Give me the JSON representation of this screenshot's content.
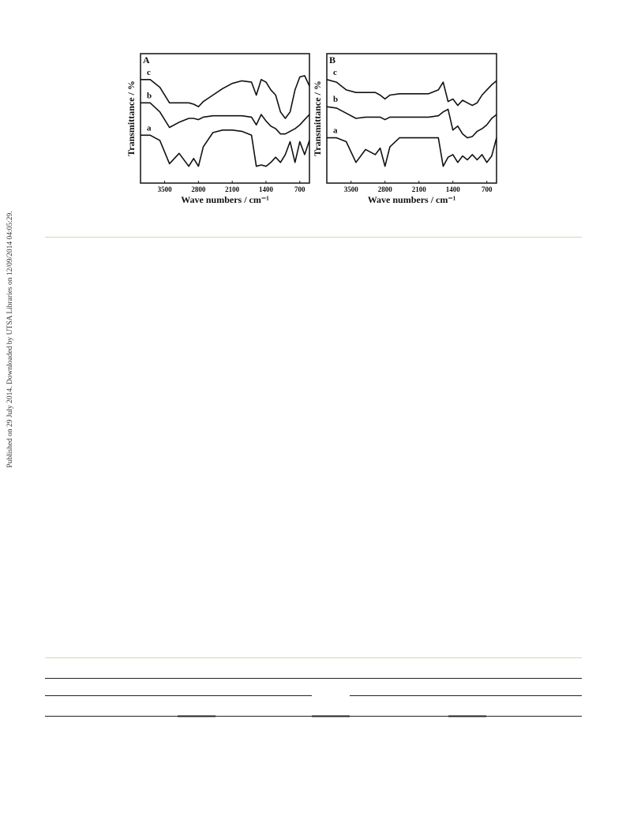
{
  "sidebar": "Published on 29 July 2014. Downloaded by UTSA Libraries on 12/09/2014 04:05:29.",
  "chart_data": [
    {
      "type": "line",
      "panel_label": "A",
      "xlabel": "Wave numbers / cm⁻¹",
      "ylabel": "Transmittance / %",
      "x": [
        4000,
        3800,
        3600,
        3400,
        3200,
        3000,
        2900,
        2800,
        2700,
        2500,
        2300,
        2100,
        1900,
        1700,
        1600,
        1500,
        1400,
        1300,
        1200,
        1100,
        1000,
        900,
        800,
        700,
        600,
        500
      ],
      "xlim": [
        4000,
        500
      ],
      "xticks": [
        3500,
        2800,
        2100,
        1400,
        700
      ],
      "ylim": [
        0,
        100
      ],
      "series": [
        {
          "name": "c",
          "color": "#111111",
          "values": [
            80,
            80,
            74,
            62,
            62,
            62,
            61,
            59,
            63,
            68,
            73,
            77,
            79,
            78,
            68,
            80,
            78,
            72,
            68,
            55,
            50,
            55,
            72,
            82,
            83,
            75
          ]
        },
        {
          "name": "b",
          "color": "#111111",
          "values": [
            62,
            62,
            55,
            43,
            47,
            50,
            50,
            49,
            51,
            52,
            52,
            52,
            52,
            51,
            45,
            53,
            48,
            44,
            42,
            38,
            38,
            40,
            42,
            45,
            49,
            53
          ]
        },
        {
          "name": "a",
          "color": "#111111",
          "values": [
            37,
            37,
            33,
            15,
            23,
            13,
            19,
            13,
            28,
            39,
            41,
            41,
            40,
            37,
            13,
            14,
            13,
            16,
            20,
            16,
            22,
            32,
            16,
            32,
            22,
            33
          ]
        }
      ]
    },
    {
      "type": "line",
      "panel_label": "B",
      "xlabel": "Wave numbers / cm⁻¹",
      "ylabel": "Transmittance / %",
      "x": [
        4000,
        3800,
        3600,
        3400,
        3200,
        3000,
        2900,
        2800,
        2700,
        2500,
        2300,
        2100,
        1900,
        1700,
        1600,
        1500,
        1400,
        1300,
        1200,
        1100,
        1000,
        900,
        800,
        700,
        600,
        500
      ],
      "xlim": [
        4000,
        500
      ],
      "xticks": [
        3500,
        2800,
        2100,
        1400,
        700
      ],
      "ylim": [
        0,
        100
      ],
      "series": [
        {
          "name": "c",
          "color": "#111111",
          "values": [
            80,
            78,
            72,
            70,
            70,
            70,
            68,
            65,
            68,
            69,
            69,
            69,
            69,
            72,
            78,
            63,
            65,
            60,
            64,
            62,
            60,
            62,
            68,
            72,
            76,
            79
          ]
        },
        {
          "name": "b",
          "color": "#111111",
          "values": [
            59,
            58,
            54,
            50,
            51,
            51,
            51,
            49,
            51,
            51,
            51,
            51,
            51,
            52,
            55,
            57,
            41,
            44,
            38,
            35,
            36,
            40,
            42,
            45,
            50,
            53
          ]
        },
        {
          "name": "a",
          "color": "#111111",
          "values": [
            35,
            35,
            32,
            16,
            26,
            22,
            27,
            13,
            28,
            35,
            35,
            35,
            35,
            35,
            13,
            20,
            22,
            16,
            21,
            18,
            22,
            18,
            22,
            16,
            21,
            35
          ]
        }
      ]
    }
  ]
}
